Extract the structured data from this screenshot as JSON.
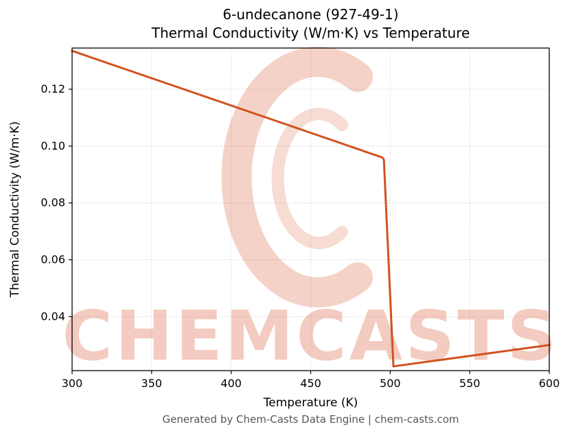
{
  "page": {
    "footer": "Generated by Chem-Casts Data Engine | chem-casts.com"
  },
  "chart_data": {
    "type": "line",
    "title_line1": "6-undecanone (927-49-1)",
    "title_line2": "Thermal Conductivity (W/m·K) vs Temperature",
    "xlabel": "Temperature (K)",
    "ylabel": "Thermal Conductivity (W/m·K)",
    "xlim": [
      300,
      600
    ],
    "ylim": [
      0.021,
      0.1345
    ],
    "xticks": [
      300,
      350,
      400,
      450,
      500,
      550,
      600
    ],
    "yticks": [
      0.04,
      0.06,
      0.08,
      0.1,
      0.12
    ],
    "grid": true,
    "legend": "none",
    "line_color": "#d2511e",
    "series": [
      {
        "name": "thermal_conductivity",
        "points": [
          [
            300,
            0.1335
          ],
          [
            495,
            0.096
          ],
          [
            496,
            0.0952
          ],
          [
            502,
            0.0225
          ],
          [
            600,
            0.03
          ]
        ]
      }
    ],
    "watermark": {
      "text": "CHEMCASTS",
      "color": "#db5430",
      "opacity": 0.3
    }
  }
}
